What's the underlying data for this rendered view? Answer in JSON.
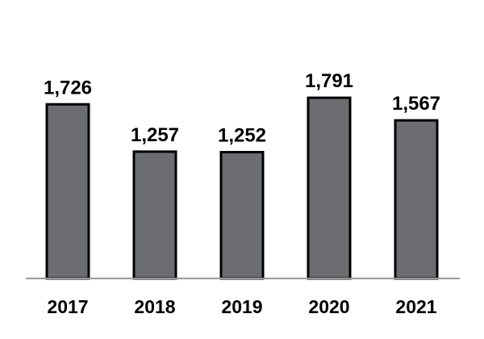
{
  "chart_data": {
    "type": "bar",
    "categories": [
      "2017",
      "2018",
      "2019",
      "2020",
      "2021"
    ],
    "values": [
      1726,
      1257,
      1252,
      1791,
      1567
    ],
    "value_labels": [
      "1,726",
      "1,257",
      "1,252",
      "1,791",
      "1,567"
    ],
    "title": "",
    "xlabel": "",
    "ylabel": "",
    "ylim": [
      0,
      1800
    ],
    "grid": false,
    "legend": "none",
    "colors": {
      "bar_fill": "#6b6d70",
      "bar_stroke": "#000000",
      "axis": "#999999"
    }
  }
}
